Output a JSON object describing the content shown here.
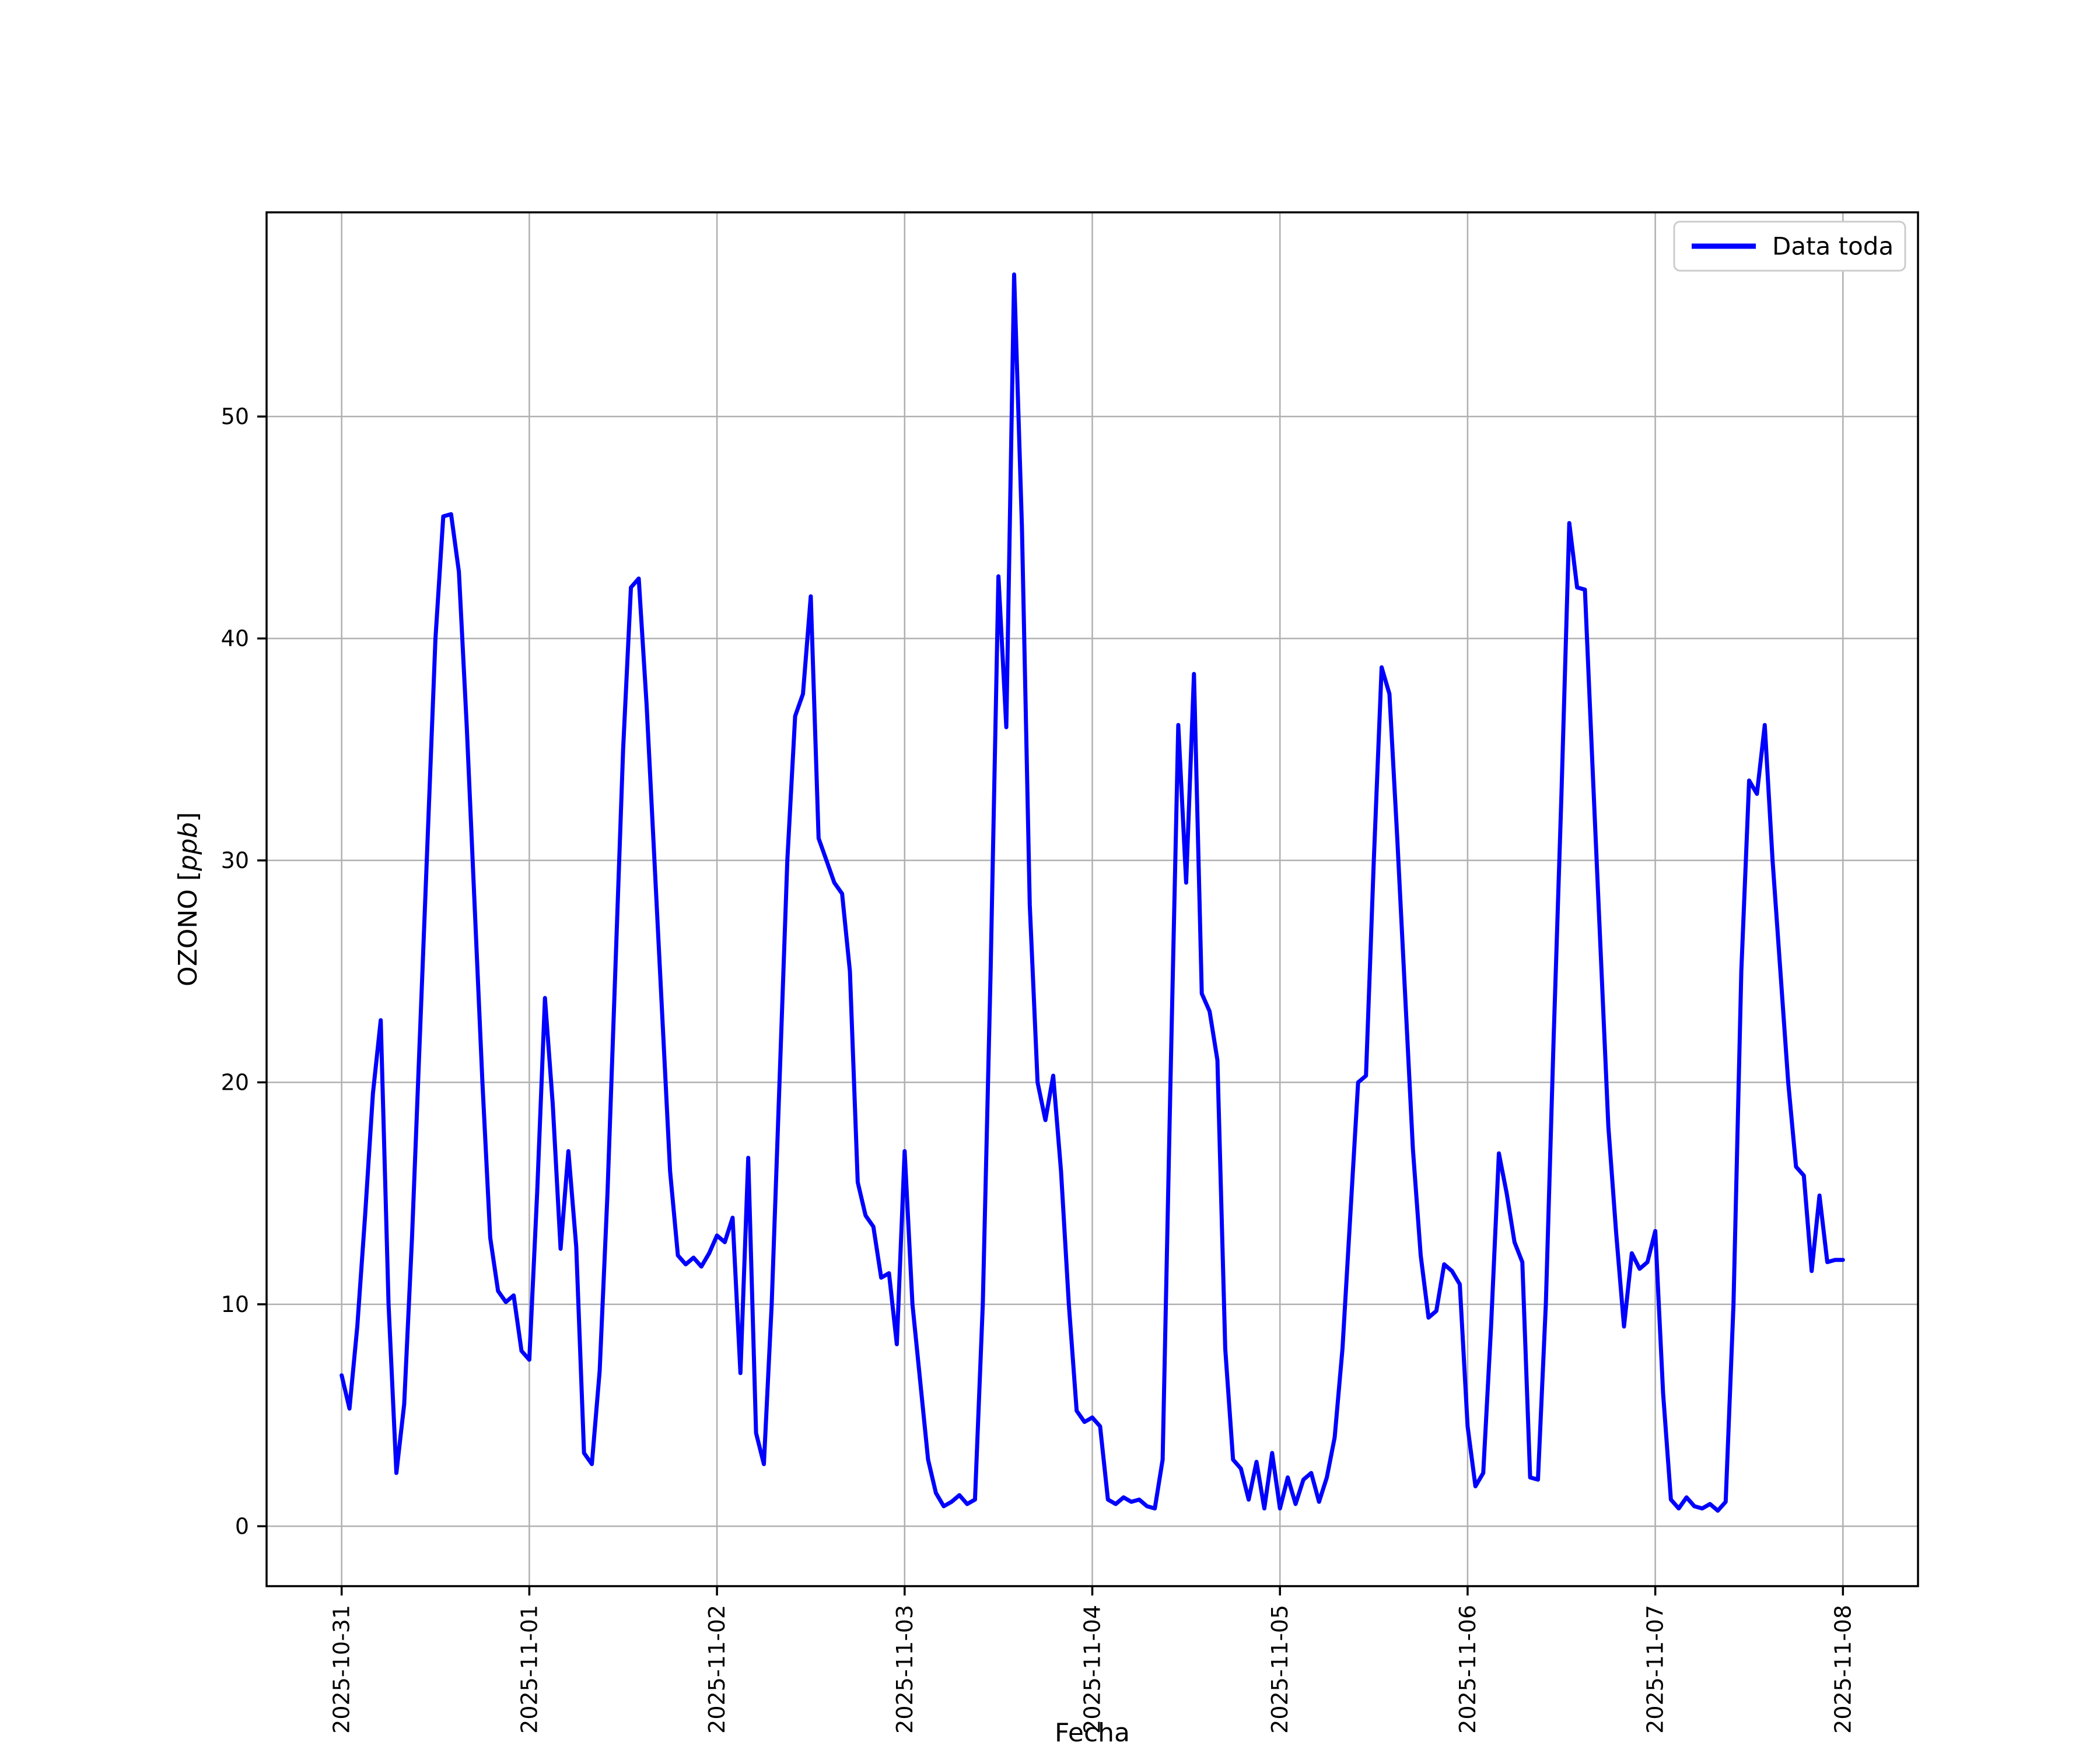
{
  "figure": {
    "background_color": "#ffffff"
  },
  "chart_data": {
    "type": "line",
    "title": "",
    "xlabel": "Fecha",
    "ylabel_prefix": "OZONO [",
    "ylabel_italic": "ppb",
    "ylabel_suffix": "]",
    "grid": true,
    "line_color": "#0000ff",
    "grid_color": "#b0b0b0",
    "spine_color": "#000000",
    "legend": {
      "position": "upper right",
      "entries": [
        {
          "label": "Data toda",
          "color": "#0000ff"
        }
      ]
    },
    "x_axis": {
      "unit": "hours since 2025-10-31 00:00",
      "start_hour": 0,
      "step_hours": 1
    },
    "x_ticks": [
      {
        "hour": 0,
        "label": "2025-10-31"
      },
      {
        "hour": 24,
        "label": "2025-11-01"
      },
      {
        "hour": 48,
        "label": "2025-11-02"
      },
      {
        "hour": 72,
        "label": "2025-11-03"
      },
      {
        "hour": 96,
        "label": "2025-11-04"
      },
      {
        "hour": 120,
        "label": "2025-11-05"
      },
      {
        "hour": 144,
        "label": "2025-11-06"
      },
      {
        "hour": 168,
        "label": "2025-11-07"
      },
      {
        "hour": 192,
        "label": "2025-11-08"
      }
    ],
    "y_ticks": [
      0,
      10,
      20,
      30,
      40,
      50
    ],
    "xlim_hours": [
      -9.6,
      201.6
    ],
    "ylim": [
      -2.7,
      59.2
    ],
    "values": [
      6.8,
      5.3,
      9.0,
      14.0,
      19.5,
      22.8,
      10.0,
      2.4,
      5.5,
      13.0,
      22.0,
      31.0,
      40.0,
      45.5,
      45.6,
      43.0,
      36.0,
      28.0,
      20.0,
      13.0,
      10.6,
      10.1,
      10.4,
      7.9,
      7.5,
      15.0,
      23.8,
      19.0,
      12.5,
      16.9,
      12.6,
      3.3,
      2.8,
      7.0,
      15.0,
      25.0,
      35.0,
      42.3,
      42.7,
      37.0,
      30.0,
      23.0,
      16.0,
      12.2,
      11.8,
      12.1,
      11.7,
      12.3,
      13.1,
      12.8,
      13.9,
      6.9,
      16.6,
      4.2,
      2.8,
      10.0,
      20.0,
      30.0,
      36.5,
      37.5,
      41.9,
      31.0,
      30.0,
      29.0,
      28.5,
      25.0,
      15.5,
      14.0,
      13.5,
      11.2,
      11.4,
      8.2,
      16.9,
      10.0,
      6.5,
      3.0,
      1.5,
      0.9,
      1.1,
      1.4,
      1.0,
      1.2,
      10.0,
      25.0,
      42.8,
      36.0,
      56.4,
      45.0,
      28.0,
      20.0,
      18.3,
      20.3,
      16.0,
      10.0,
      5.2,
      4.7,
      4.9,
      4.5,
      1.2,
      1.0,
      1.3,
      1.1,
      1.2,
      0.9,
      0.8,
      3.0,
      20.0,
      36.1,
      29.0,
      38.4,
      24.0,
      23.2,
      21.0,
      8.0,
      3.0,
      2.6,
      1.2,
      2.9,
      0.8,
      3.3,
      0.8,
      2.2,
      1.0,
      2.1,
      2.4,
      1.1,
      2.2,
      4.0,
      8.0,
      14.0,
      20.0,
      20.3,
      30.0,
      38.7,
      37.5,
      31.0,
      24.0,
      17.0,
      12.2,
      9.4,
      9.7,
      11.8,
      11.5,
      10.9,
      4.5,
      1.8,
      2.4,
      9.0,
      16.8,
      15.0,
      12.8,
      11.9,
      2.2,
      2.1,
      10.0,
      22.0,
      33.0,
      45.2,
      42.3,
      42.2,
      34.0,
      26.0,
      18.0,
      13.2,
      9.0,
      12.3,
      11.6,
      11.9,
      13.3,
      6.0,
      1.2,
      0.8,
      1.3,
      0.9,
      0.8,
      1.0,
      0.7,
      1.1,
      10.0,
      25.0,
      33.6,
      33.0,
      36.1,
      30.0,
      25.0,
      20.0,
      16.2,
      15.8,
      11.5,
      14.9,
      11.9,
      12.0,
      12.0
    ]
  }
}
